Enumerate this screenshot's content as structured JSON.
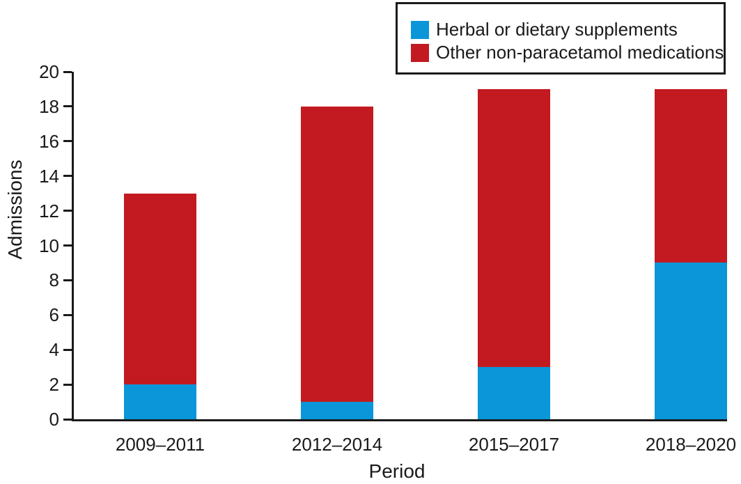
{
  "chart_data": {
    "type": "bar",
    "stacked": true,
    "title": "",
    "xlabel": "Period",
    "ylabel": "Admissions",
    "categories": [
      "2009–2011",
      "2012–2014",
      "2015–2017",
      "2018–2020"
    ],
    "series": [
      {
        "name": "Herbal or dietary supplements",
        "color": "#0A96D9",
        "values": [
          2,
          1,
          3,
          9
        ]
      },
      {
        "name": "Other non-paracetamol medications",
        "color": "#C21A20",
        "values": [
          11,
          17,
          16,
          10
        ]
      }
    ],
    "totals": [
      13,
      18,
      19,
      19
    ],
    "ylim": [
      0,
      20
    ],
    "ytick_step": 2,
    "yticks": [
      0,
      2,
      4,
      6,
      8,
      10,
      12,
      14,
      16,
      18,
      20
    ],
    "grid": false,
    "legend_position": "top-right",
    "axis_color": "#1A1A1A",
    "text_color": "#1A1A1A",
    "background_color": "#FFFFFF"
  }
}
